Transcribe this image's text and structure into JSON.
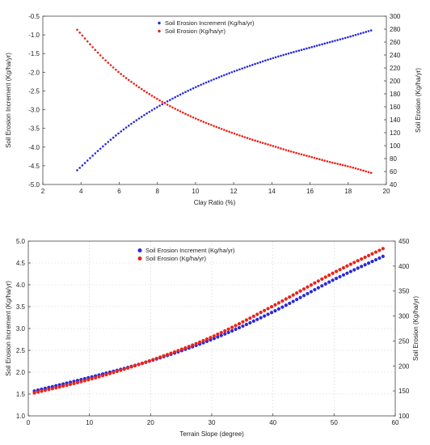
{
  "chart_data": [
    {
      "type": "scatter",
      "xlabel": "Clay Ratio (%)",
      "ylabel_left": "Soil Erosion Increment (Kg/ha/yr)",
      "ylabel_right": "Soil Erosion (Kg/ha/yr)",
      "xlim": [
        2,
        20
      ],
      "ylim_left": [
        -5.0,
        -0.5
      ],
      "ylim_right": [
        40,
        300
      ],
      "xticks": [
        "2",
        "4",
        "6",
        "8",
        "10",
        "12",
        "14",
        "16",
        "18",
        "20"
      ],
      "yticks_left": [
        "-5.0",
        "-4.5",
        "-4.0",
        "-3.5",
        "-3.0",
        "-2.5",
        "-2.0",
        "-1.5",
        "-1.0",
        "-0.5"
      ],
      "yticks_right": [
        "40",
        "60",
        "80",
        "100",
        "120",
        "140",
        "160",
        "180",
        "200",
        "220",
        "240",
        "260",
        "280",
        "300"
      ],
      "grid": false,
      "legend_position": "top-center",
      "series": [
        {
          "name": "Soil Erosion Increment (Kg/ha/yr)",
          "axis": "left",
          "color": "#2a2ad6",
          "x_range": [
            3.8,
            19.2
          ],
          "points": [
            [
              3.8,
              -4.62
            ],
            [
              5,
              -4.05
            ],
            [
              6,
              -3.62
            ],
            [
              7,
              -3.25
            ],
            [
              8,
              -2.93
            ],
            [
              9,
              -2.65
            ],
            [
              10,
              -2.4
            ],
            [
              11,
              -2.18
            ],
            [
              12,
              -1.98
            ],
            [
              13,
              -1.8
            ],
            [
              14,
              -1.63
            ],
            [
              15,
              -1.48
            ],
            [
              16,
              -1.34
            ],
            [
              17,
              -1.2
            ],
            [
              18,
              -1.06
            ],
            [
              19.2,
              -0.88
            ]
          ]
        },
        {
          "name": "Soil Erosion (Kg/ha/yr)",
          "axis": "right",
          "color": "#e8231a",
          "x_range": [
            3.8,
            19.2
          ],
          "points": [
            [
              3.8,
              279
            ],
            [
              5,
              240
            ],
            [
              6,
              213
            ],
            [
              7,
              191
            ],
            [
              8,
              172
            ],
            [
              9,
              156
            ],
            [
              10,
              142
            ],
            [
              11,
              130
            ],
            [
              12,
              119
            ],
            [
              13,
              109
            ],
            [
              14,
              100
            ],
            [
              15,
              91
            ],
            [
              16,
              83
            ],
            [
              17,
              75
            ],
            [
              18,
              68
            ],
            [
              19.2,
              58
            ]
          ]
        }
      ]
    },
    {
      "type": "scatter",
      "xlabel": "Terrain Slope (degree)",
      "ylabel_left": "Soil Erosion Increment (Kg/ha/yr)",
      "ylabel_right": "Soil Erosion (Kg/ha/yr)",
      "xlim": [
        0,
        60
      ],
      "ylim_left": [
        1.0,
        5.0
      ],
      "ylim_right": [
        100,
        450
      ],
      "xticks": [
        "0",
        "10",
        "20",
        "30",
        "40",
        "50",
        "60"
      ],
      "yticks_left": [
        "1.0",
        "1.5",
        "2.0",
        "2.5",
        "3.0",
        "3.5",
        "4.0",
        "4.5",
        "5.0"
      ],
      "yticks_right": [
        "100",
        "150",
        "200",
        "250",
        "300",
        "350",
        "400",
        "450"
      ],
      "grid": true,
      "legend_position": "top-center",
      "series": [
        {
          "name": "Soil Erosion Increment (Kg/ha/yr)",
          "axis": "left",
          "color": "#2a2ad6",
          "x_range": [
            1,
            58
          ],
          "points": [
            [
              1,
              1.57
            ],
            [
              10,
              1.88
            ],
            [
              20,
              2.26
            ],
            [
              30,
              2.75
            ],
            [
              40,
              3.38
            ],
            [
              50,
              4.12
            ],
            [
              58,
              4.65
            ]
          ]
        },
        {
          "name": "Soil Erosion  (Kg/ha/yr)",
          "axis": "right",
          "color": "#e8231a",
          "x_range": [
            1,
            58
          ],
          "points": [
            [
              1,
              146
            ],
            [
              10,
              173
            ],
            [
              20,
              211
            ],
            [
              30,
              258
            ],
            [
              40,
              320
            ],
            [
              50,
              387
            ],
            [
              58,
              435
            ]
          ]
        }
      ]
    }
  ]
}
